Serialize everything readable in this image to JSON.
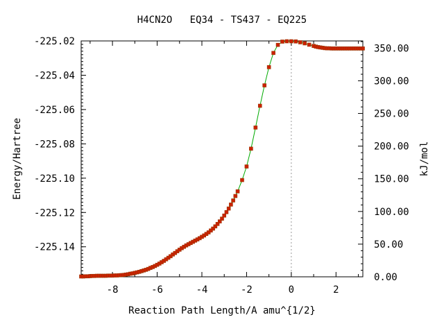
{
  "chart_data": {
    "type": "line",
    "title": "H4CN2O   EQ34 - TS437 - EQ225",
    "xlabel": "Reaction Path Length/A amu^{1/2}",
    "ylabel_left": "Energy/Hartree",
    "ylabel_right": "kJ/mol",
    "xlim": [
      -9.4,
      3.2
    ],
    "ylim_left": [
      -225.1575,
      -225.02
    ],
    "ylim_right": [
      0,
      361
    ],
    "x_ticks": [
      -8,
      -6,
      -4,
      -2,
      0,
      2
    ],
    "x_tick_labels": [
      "-8",
      "-6",
      "-4",
      "-2",
      "0",
      "2"
    ],
    "y_left_ticks": [
      -225.14,
      -225.12,
      -225.1,
      -225.08,
      -225.06,
      -225.04,
      -225.02
    ],
    "y_left_tick_labels": [
      "-225.14",
      "-225.12",
      "-225.10",
      "-225.08",
      "-225.06",
      "-225.04",
      "-225.02"
    ],
    "y_right_ticks": [
      0,
      50,
      100,
      150,
      200,
      250,
      300,
      350
    ],
    "y_right_tick_labels": [
      "0.00",
      "50.00",
      "100.00",
      "150.00",
      "200.00",
      "250.00",
      "300.00",
      "350.00"
    ],
    "ts_x": 0,
    "grid": false,
    "colors": {
      "line": "#00aa00",
      "marker": "#cc2200",
      "ts_line": "#999999"
    },
    "series": [
      {
        "x": [
          -9.4,
          -9.3,
          -9.2,
          -9.1,
          -9.0,
          -8.9,
          -8.8,
          -8.7,
          -8.6,
          -8.5,
          -8.4,
          -8.3,
          -8.2,
          -8.1,
          -8.0,
          -7.9,
          -7.8,
          -7.7,
          -7.6,
          -7.5,
          -7.4,
          -7.3,
          -7.2,
          -7.1,
          -7.0,
          -6.9,
          -6.8,
          -6.7,
          -6.6,
          -6.5,
          -6.4,
          -6.3,
          -6.2,
          -6.1,
          -6.0,
          -5.9,
          -5.8,
          -5.7,
          -5.6,
          -5.5,
          -5.4,
          -5.3,
          -5.2,
          -5.1,
          -5.0,
          -4.9,
          -4.8,
          -4.7,
          -4.6,
          -4.5,
          -4.4,
          -4.3,
          -4.2,
          -4.1,
          -4.0,
          -3.9,
          -3.8,
          -3.7,
          -3.6,
          -3.5,
          -3.4,
          -3.3,
          -3.2,
          -3.1,
          -3.0,
          -2.9,
          -2.8,
          -2.7,
          -2.6,
          -2.5,
          -2.4,
          -2.2,
          -2.0,
          -1.8,
          -1.6,
          -1.4,
          -1.2,
          -1.0,
          -0.8,
          -0.6,
          -0.4,
          -0.2,
          0.0,
          0.2,
          0.4,
          0.6,
          0.8,
          1.0,
          1.1,
          1.2,
          1.3,
          1.4,
          1.5,
          1.6,
          1.7,
          1.8,
          1.9,
          2.0,
          2.1,
          2.2,
          2.3,
          2.4,
          2.5,
          2.6,
          2.7,
          2.8,
          2.9,
          3.0,
          3.1,
          3.2
        ],
        "y": [
          -225.1573,
          -225.1573,
          -225.1572,
          -225.1572,
          -225.1571,
          -225.157,
          -225.157,
          -225.1569,
          -225.1569,
          -225.1569,
          -225.1569,
          -225.1569,
          -225.1568,
          -225.1568,
          -225.1568,
          -225.1567,
          -225.1567,
          -225.1566,
          -225.1565,
          -225.1564,
          -225.1562,
          -225.156,
          -225.1557,
          -225.1555,
          -225.1552,
          -225.1549,
          -225.1546,
          -225.1542,
          -225.1538,
          -225.1534,
          -225.1529,
          -225.1523,
          -225.1518,
          -225.1512,
          -225.1505,
          -225.1498,
          -225.149,
          -225.1482,
          -225.1473,
          -225.1464,
          -225.1455,
          -225.1445,
          -225.1436,
          -225.1426,
          -225.1417,
          -225.1408,
          -225.14,
          -225.1392,
          -225.1385,
          -225.1378,
          -225.1371,
          -225.1364,
          -225.1357,
          -225.135,
          -225.1342,
          -225.1334,
          -225.1325,
          -225.1316,
          -225.1305,
          -225.1294,
          -225.1281,
          -225.1267,
          -225.1252,
          -225.1236,
          -225.1218,
          -225.1198,
          -225.1177,
          -225.1154,
          -225.113,
          -225.1104,
          -225.1077,
          -225.1011,
          -225.0932,
          -225.0828,
          -225.0705,
          -225.0578,
          -225.0459,
          -225.0353,
          -225.027,
          -225.0223,
          -225.0204,
          -225.0202,
          -225.0202,
          -225.0203,
          -225.0208,
          -225.0214,
          -225.0222,
          -225.0229,
          -225.0233,
          -225.0236,
          -225.0238,
          -225.024,
          -225.0242,
          -225.0243,
          -225.0243,
          -225.0244,
          -225.0244,
          -225.0244,
          -225.0244,
          -225.0244,
          -225.0244,
          -225.0244,
          -225.0244,
          -225.0244,
          -225.0244,
          -225.0244,
          -225.0244,
          -225.0244,
          -225.0244,
          -225.0244
        ]
      }
    ]
  }
}
